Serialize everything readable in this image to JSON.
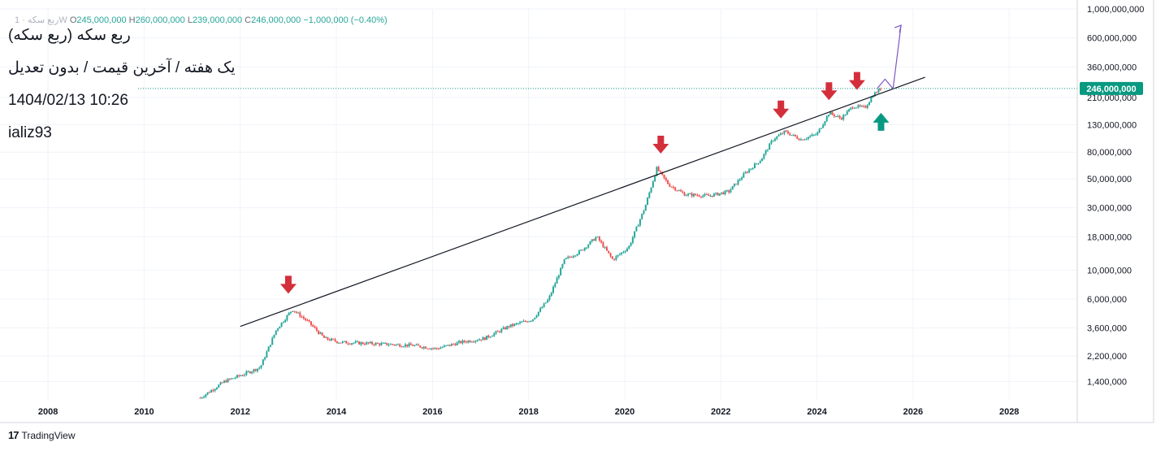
{
  "header": {
    "symbol": "ربع سکه · 1W",
    "open_label": "O",
    "open": "245,000,000",
    "high_label": "H",
    "high": "260,000,000",
    "low_label": "L",
    "low": "239,000,000",
    "close_label": "C",
    "close": "246,000,000",
    "change": "−1,000,000 (−0.40%)"
  },
  "title_lines": {
    "line1": "ربع سکه (ربع سکه)",
    "line2": "یک هفته / آخرین قیمت / بدون تعدیل",
    "line3": "1404/02/13 10:26",
    "line4": "ializ93"
  },
  "brand": {
    "name": "TradingView"
  },
  "colors": {
    "up": "#26a69a",
    "down": "#ef5350",
    "arrow_down": "#d32f3b",
    "arrow_up": "#089981",
    "trendline": "#131722",
    "projection": "#7e57c2",
    "last_price_tag": "#089981"
  },
  "chart_data": {
    "type": "candlestick",
    "scale": "log",
    "ylim": [
      1000000,
      1000000000
    ],
    "xlim": [
      "2007-01",
      "2029-06"
    ],
    "x_ticks": [
      "2008",
      "2010",
      "2012",
      "2014",
      "2016",
      "2018",
      "2020",
      "2022",
      "2024",
      "2026",
      "2028"
    ],
    "y_ticks": [
      {
        "value": 1000000000,
        "label": "1,000,000,000"
      },
      {
        "value": 600000000,
        "label": "600,000,000"
      },
      {
        "value": 360000000,
        "label": "360,000,000"
      },
      {
        "value": 210000000,
        "label": "210,000,000"
      },
      {
        "value": 130000000,
        "label": "130,000,000"
      },
      {
        "value": 80000000,
        "label": "80,000,000"
      },
      {
        "value": 50000000,
        "label": "50,000,000"
      },
      {
        "value": 30000000,
        "label": "30,000,000"
      },
      {
        "value": 18000000,
        "label": "18,000,000"
      },
      {
        "value": 10000000,
        "label": "10,000,000"
      },
      {
        "value": 6000000,
        "label": "6,000,000"
      },
      {
        "value": 3600000,
        "label": "3,600,000"
      },
      {
        "value": 2200000,
        "label": "2,200,000"
      },
      {
        "value": 1400000,
        "label": "1,400,000"
      }
    ],
    "last_price": {
      "value": 246000000,
      "label": "246,000,000"
    },
    "price_path": [
      [
        "2011-03",
        1050000
      ],
      [
        "2011-09",
        1400000
      ],
      [
        "2012-02",
        1600000
      ],
      [
        "2012-06",
        1800000
      ],
      [
        "2012-10",
        3500000
      ],
      [
        "2013-02",
        5000000
      ],
      [
        "2013-06",
        4000000
      ],
      [
        "2013-10",
        3000000
      ],
      [
        "2014-02",
        2800000
      ],
      [
        "2014-08",
        2750000
      ],
      [
        "2015-02",
        2700000
      ],
      [
        "2015-08",
        2650000
      ],
      [
        "2016-02",
        2500000
      ],
      [
        "2016-08",
        2800000
      ],
      [
        "2017-02",
        3000000
      ],
      [
        "2017-08",
        3700000
      ],
      [
        "2018-02",
        4200000
      ],
      [
        "2018-06",
        6000000
      ],
      [
        "2018-10",
        12000000
      ],
      [
        "2019-02",
        14000000
      ],
      [
        "2019-06",
        18000000
      ],
      [
        "2019-10",
        12000000
      ],
      [
        "2020-02",
        15000000
      ],
      [
        "2020-06",
        30000000
      ],
      [
        "2020-09",
        60000000
      ],
      [
        "2020-12",
        45000000
      ],
      [
        "2021-04",
        38000000
      ],
      [
        "2021-10",
        37000000
      ],
      [
        "2022-03",
        40000000
      ],
      [
        "2022-07",
        55000000
      ],
      [
        "2022-11",
        70000000
      ],
      [
        "2023-02",
        100000000
      ],
      [
        "2023-05",
        115000000
      ],
      [
        "2023-09",
        100000000
      ],
      [
        "2024-01",
        110000000
      ],
      [
        "2024-04",
        160000000
      ],
      [
        "2024-07",
        145000000
      ],
      [
        "2024-10",
        180000000
      ],
      [
        "2025-01",
        175000000
      ],
      [
        "2025-03",
        220000000
      ],
      [
        "2025-05",
        246000000
      ]
    ],
    "trendline": {
      "start": [
        "2012-01",
        3700000
      ],
      "end": [
        "2026-04",
        300000000
      ]
    },
    "projection_path": [
      [
        "2025-04",
        245000000
      ],
      [
        "2025-06",
        290000000
      ],
      [
        "2025-08",
        245000000
      ],
      [
        "2025-10",
        750000000
      ]
    ],
    "markers": [
      {
        "type": "arrow-down",
        "date": "2013-01",
        "value": 6600000
      },
      {
        "type": "arrow-down",
        "date": "2020-10",
        "value": 78000000
      },
      {
        "type": "arrow-down",
        "date": "2023-04",
        "value": 145000000
      },
      {
        "type": "arrow-down",
        "date": "2024-04",
        "value": 200000000
      },
      {
        "type": "arrow-down",
        "date": "2024-11",
        "value": 240000000
      },
      {
        "type": "arrow-up",
        "date": "2025-05",
        "value": 160000000
      }
    ]
  }
}
